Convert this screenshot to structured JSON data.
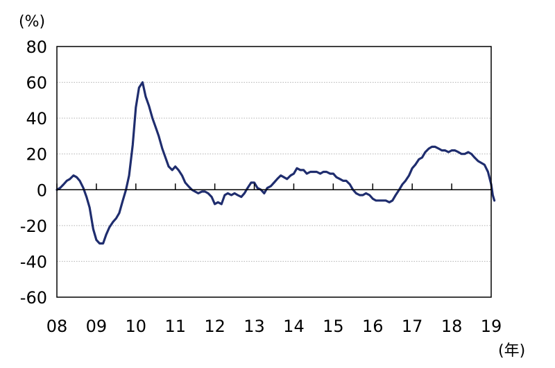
{
  "chart_data": {
    "type": "line",
    "title": "",
    "ylabel": "(%)",
    "xlabel": "(年)",
    "ylim": [
      -60,
      80
    ],
    "xlim": [
      2008,
      2019
    ],
    "yticks": [
      -60,
      -40,
      -20,
      0,
      20,
      40,
      60,
      80
    ],
    "ytick_labels": [
      "-60",
      "-40",
      "-20",
      "0",
      "20",
      "40",
      "60",
      "80"
    ],
    "xticks": [
      2008,
      2009,
      2010,
      2011,
      2012,
      2013,
      2014,
      2015,
      2016,
      2017,
      2018,
      2019
    ],
    "xtick_labels": [
      "08",
      "09",
      "10",
      "11",
      "12",
      "13",
      "14",
      "15",
      "16",
      "17",
      "18",
      "19"
    ],
    "grid": true,
    "legend": "none",
    "colors": {
      "line": "#1f2d6e",
      "grid": "#b0b0b0",
      "axis": "#000000"
    },
    "series": [
      {
        "values": [
          [
            2008.0,
            0
          ],
          [
            2008.08,
            1
          ],
          [
            2008.17,
            3
          ],
          [
            2008.25,
            5
          ],
          [
            2008.33,
            6
          ],
          [
            2008.42,
            8
          ],
          [
            2008.5,
            7
          ],
          [
            2008.58,
            5
          ],
          [
            2008.67,
            1
          ],
          [
            2008.75,
            -4
          ],
          [
            2008.83,
            -10
          ],
          [
            2008.92,
            -22
          ],
          [
            2009.0,
            -28
          ],
          [
            2009.08,
            -30
          ],
          [
            2009.17,
            -30
          ],
          [
            2009.25,
            -25
          ],
          [
            2009.33,
            -21
          ],
          [
            2009.42,
            -18
          ],
          [
            2009.5,
            -16
          ],
          [
            2009.58,
            -13
          ],
          [
            2009.67,
            -6
          ],
          [
            2009.75,
            0
          ],
          [
            2009.83,
            8
          ],
          [
            2009.92,
            25
          ],
          [
            2010.0,
            46
          ],
          [
            2010.08,
            57
          ],
          [
            2010.17,
            60
          ],
          [
            2010.25,
            52
          ],
          [
            2010.33,
            47
          ],
          [
            2010.42,
            40
          ],
          [
            2010.5,
            35
          ],
          [
            2010.58,
            30
          ],
          [
            2010.67,
            23
          ],
          [
            2010.75,
            18
          ],
          [
            2010.83,
            13
          ],
          [
            2010.92,
            11
          ],
          [
            2011.0,
            13
          ],
          [
            2011.08,
            11
          ],
          [
            2011.17,
            8
          ],
          [
            2011.25,
            4
          ],
          [
            2011.33,
            2
          ],
          [
            2011.42,
            0
          ],
          [
            2011.5,
            -1
          ],
          [
            2011.58,
            -2
          ],
          [
            2011.67,
            -1
          ],
          [
            2011.75,
            -1
          ],
          [
            2011.83,
            -2
          ],
          [
            2011.92,
            -4
          ],
          [
            2012.0,
            -8
          ],
          [
            2012.08,
            -7
          ],
          [
            2012.17,
            -8
          ],
          [
            2012.25,
            -3
          ],
          [
            2012.33,
            -2
          ],
          [
            2012.42,
            -3
          ],
          [
            2012.5,
            -2
          ],
          [
            2012.58,
            -3
          ],
          [
            2012.67,
            -4
          ],
          [
            2012.75,
            -2
          ],
          [
            2012.83,
            1
          ],
          [
            2012.92,
            4
          ],
          [
            2013.0,
            4
          ],
          [
            2013.08,
            1
          ],
          [
            2013.17,
            0
          ],
          [
            2013.25,
            -2
          ],
          [
            2013.33,
            1
          ],
          [
            2013.42,
            2
          ],
          [
            2013.5,
            4
          ],
          [
            2013.58,
            6
          ],
          [
            2013.67,
            8
          ],
          [
            2013.75,
            7
          ],
          [
            2013.83,
            6
          ],
          [
            2013.92,
            8
          ],
          [
            2014.0,
            9
          ],
          [
            2014.08,
            12
          ],
          [
            2014.17,
            11
          ],
          [
            2014.25,
            11
          ],
          [
            2014.33,
            9
          ],
          [
            2014.42,
            10
          ],
          [
            2014.5,
            10
          ],
          [
            2014.58,
            10
          ],
          [
            2014.67,
            9
          ],
          [
            2014.75,
            10
          ],
          [
            2014.83,
            10
          ],
          [
            2014.92,
            9
          ],
          [
            2015.0,
            9
          ],
          [
            2015.08,
            7
          ],
          [
            2015.17,
            6
          ],
          [
            2015.25,
            5
          ],
          [
            2015.33,
            5
          ],
          [
            2015.42,
            3
          ],
          [
            2015.5,
            0
          ],
          [
            2015.58,
            -2
          ],
          [
            2015.67,
            -3
          ],
          [
            2015.75,
            -3
          ],
          [
            2015.83,
            -2
          ],
          [
            2015.92,
            -3
          ],
          [
            2016.0,
            -5
          ],
          [
            2016.08,
            -6
          ],
          [
            2016.17,
            -6
          ],
          [
            2016.25,
            -6
          ],
          [
            2016.33,
            -6
          ],
          [
            2016.42,
            -7
          ],
          [
            2016.5,
            -6
          ],
          [
            2016.58,
            -3
          ],
          [
            2016.67,
            0
          ],
          [
            2016.75,
            3
          ],
          [
            2016.83,
            5
          ],
          [
            2016.92,
            8
          ],
          [
            2017.0,
            12
          ],
          [
            2017.08,
            14
          ],
          [
            2017.17,
            17
          ],
          [
            2017.25,
            18
          ],
          [
            2017.33,
            21
          ],
          [
            2017.42,
            23
          ],
          [
            2017.5,
            24
          ],
          [
            2017.58,
            24
          ],
          [
            2017.67,
            23
          ],
          [
            2017.75,
            22
          ],
          [
            2017.83,
            22
          ],
          [
            2017.92,
            21
          ],
          [
            2018.0,
            22
          ],
          [
            2018.08,
            22
          ],
          [
            2018.17,
            21
          ],
          [
            2018.25,
            20
          ],
          [
            2018.33,
            20
          ],
          [
            2018.42,
            21
          ],
          [
            2018.5,
            20
          ],
          [
            2018.58,
            18
          ],
          [
            2018.67,
            16
          ],
          [
            2018.75,
            15
          ],
          [
            2018.83,
            14
          ],
          [
            2018.92,
            10
          ],
          [
            2019.0,
            3
          ],
          [
            2019.04,
            -3
          ],
          [
            2019.08,
            -6
          ]
        ]
      }
    ]
  }
}
